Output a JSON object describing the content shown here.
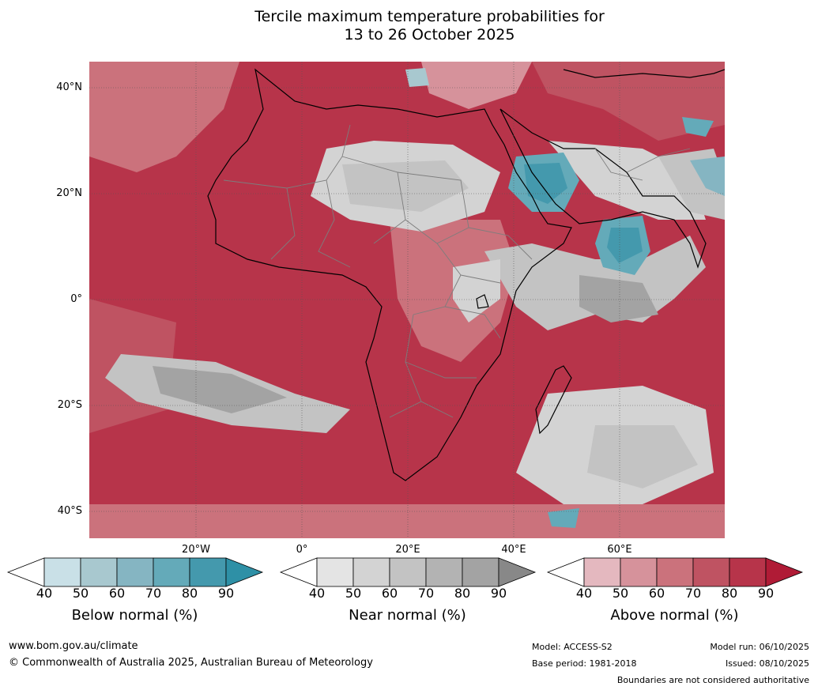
{
  "title": {
    "line1": "Tercile maximum temperature probabilities for",
    "line2": "13 to 26 October 2025"
  },
  "map": {
    "lat_labels": [
      "40°N",
      "20°N",
      "0°",
      "20°S",
      "40°S"
    ],
    "lon_labels": [
      "20°W",
      "0°",
      "20°E",
      "40°E",
      "60°E"
    ]
  },
  "colorbars": [
    {
      "label": "Below normal (%)",
      "ticks": [
        "40",
        "50",
        "60",
        "70",
        "80",
        "90"
      ],
      "colors": [
        "#ffffff",
        "#c9e0e7",
        "#a8c8cf",
        "#85b5c2",
        "#64aab9",
        "#4499ad",
        "#2e90a6"
      ]
    },
    {
      "label": "Near normal (%)",
      "ticks": [
        "40",
        "50",
        "60",
        "70",
        "80",
        "90"
      ],
      "colors": [
        "#ffffff",
        "#e4e4e4",
        "#d3d3d3",
        "#c3c3c3",
        "#b3b3b3",
        "#a3a3a3",
        "#888888"
      ]
    },
    {
      "label": "Above normal (%)",
      "ticks": [
        "40",
        "50",
        "60",
        "70",
        "80",
        "90"
      ],
      "colors": [
        "#ffffff",
        "#e4b8bf",
        "#d6929b",
        "#cb727c",
        "#bf5362",
        "#b7344a",
        "#b01b36"
      ]
    }
  ],
  "footer": {
    "url": "www.bom.gov.au/climate",
    "copyright": "© Commonwealth of Australia 2025, Australian Bureau of Meteorology",
    "model": "Model: ACCESS-S2",
    "base_period": "Base period: 1981-2018",
    "model_run": "Model run: 06/10/2025",
    "issued": "Issued: 08/10/2025",
    "disclaimer": "Boundaries are not considered authoritative"
  }
}
